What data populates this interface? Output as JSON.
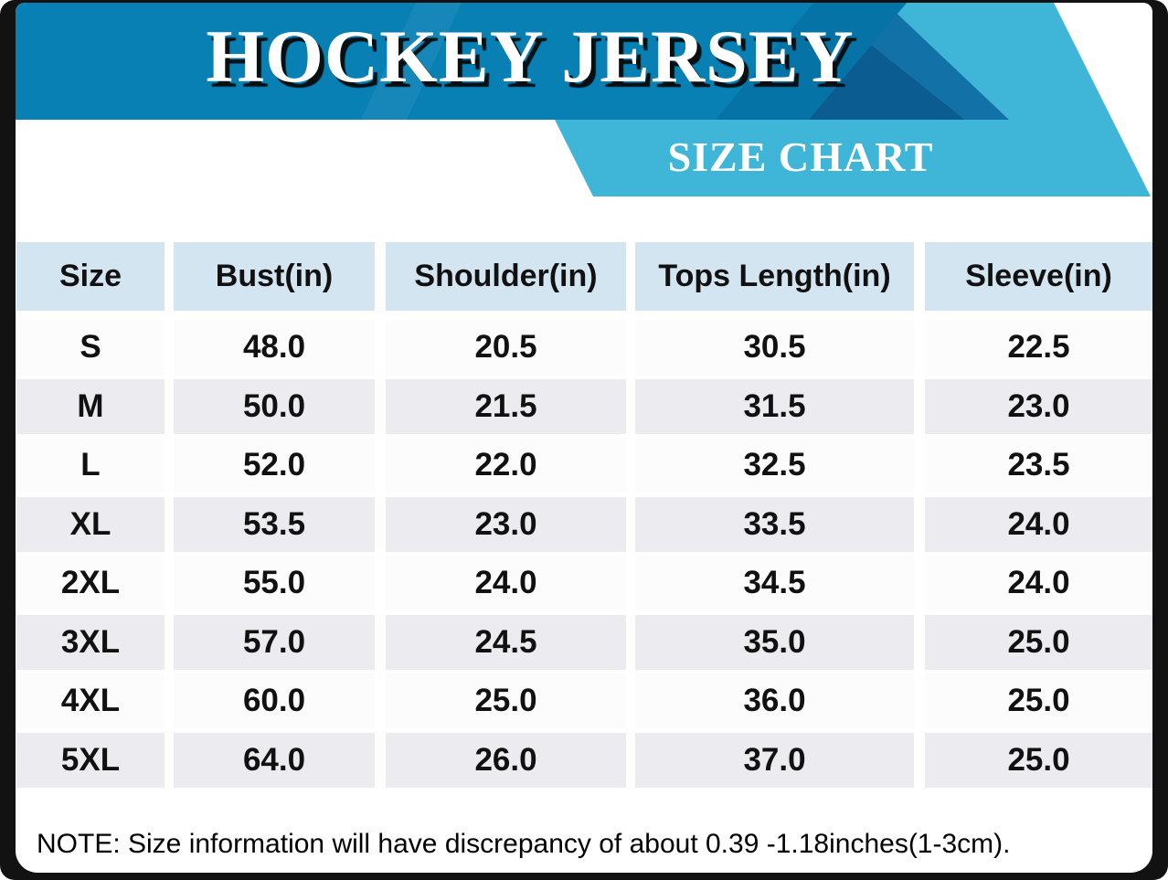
{
  "banner": {
    "title": "HOCKEY JERSEY",
    "subtitle": "SIZE CHART"
  },
  "table": {
    "headers": [
      "Size",
      "Bust(in)",
      "Shoulder(in)",
      "Tops Length(in)",
      "Sleeve(in)"
    ],
    "rows": [
      {
        "cells": [
          "S",
          "48.0",
          "20.5",
          "30.5",
          "22.5"
        ]
      },
      {
        "cells": [
          "M",
          "50.0",
          "21.5",
          "31.5",
          "23.0"
        ]
      },
      {
        "cells": [
          "L",
          "52.0",
          "22.0",
          "32.5",
          "23.5"
        ]
      },
      {
        "cells": [
          "XL",
          "53.5",
          "23.0",
          "33.5",
          "24.0"
        ]
      },
      {
        "cells": [
          "2XL",
          "55.0",
          "24.0",
          "34.5",
          "24.0"
        ]
      },
      {
        "cells": [
          "3XL",
          "57.0",
          "24.5",
          "35.0",
          "25.0"
        ]
      },
      {
        "cells": [
          "4XL",
          "60.0",
          "25.0",
          "36.0",
          "25.0"
        ]
      },
      {
        "cells": [
          "5XL",
          "64.0",
          "26.0",
          "37.0",
          "25.0"
        ]
      }
    ]
  },
  "note": "NOTE: Size information will have discrepancy of about 0.39 -1.18inches(1-3cm).",
  "colors": {
    "banner_blue": "#0880b4",
    "banner_stripe_dark": "#0673a7",
    "ribbon_dark_left": "#0a5c91",
    "ribbon_dark_right": "#1272a8",
    "ribbon_light": "#3fb5d8",
    "header_cell_bg": "#d3e5f0",
    "row_bg": "#fcfcfd",
    "row_alt_bg": "#ebebf0",
    "frame": "#121212",
    "text": "#111111"
  },
  "chart_data": {
    "type": "table",
    "title": "HOCKEY JERSEY",
    "subtitle": "SIZE CHART",
    "columns": [
      "Size",
      "Bust(in)",
      "Shoulder(in)",
      "Tops Length(in)",
      "Sleeve(in)"
    ],
    "rows": [
      [
        "S",
        48.0,
        20.5,
        30.5,
        22.5
      ],
      [
        "M",
        50.0,
        21.5,
        31.5,
        23.0
      ],
      [
        "L",
        52.0,
        22.0,
        32.5,
        23.5
      ],
      [
        "XL",
        53.5,
        23.0,
        33.5,
        24.0
      ],
      [
        "2XL",
        55.0,
        24.0,
        34.5,
        24.0
      ],
      [
        "3XL",
        57.0,
        24.5,
        35.0,
        25.0
      ],
      [
        "4XL",
        60.0,
        25.0,
        36.0,
        25.0
      ],
      [
        "5XL",
        64.0,
        26.0,
        37.0,
        25.0
      ]
    ],
    "units": "inches",
    "note": "NOTE: Size information will have discrepancy of about 0.39 -1.18inches(1-3cm)."
  }
}
